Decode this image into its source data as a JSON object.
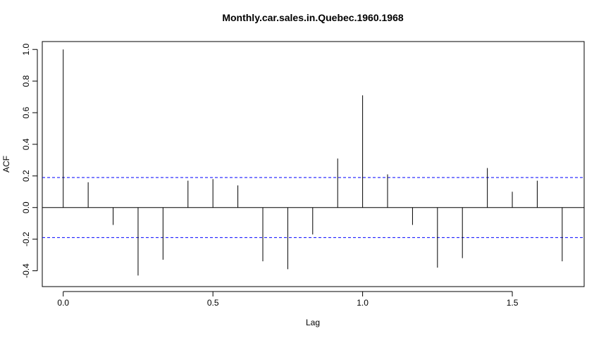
{
  "chart_data": {
    "type": "bar",
    "title": "Monthly.car.sales.in.Quebec.1960.1968",
    "xlabel": "Lag",
    "ylabel": "ACF",
    "xlim": [
      -0.07,
      1.74
    ],
    "ylim": [
      -0.5,
      1.05
    ],
    "x_ticks": [
      0.0,
      0.5,
      1.0,
      1.5
    ],
    "x_tick_labels": [
      "0.0",
      "0.5",
      "1.0",
      "1.5"
    ],
    "y_ticks": [
      -0.4,
      -0.2,
      0.0,
      0.2,
      0.4,
      0.6,
      0.8,
      1.0
    ],
    "y_tick_labels": [
      "-0.4",
      "-0.2",
      "0.0",
      "0.2",
      "0.4",
      "0.6",
      "0.8",
      "1.0"
    ],
    "confidence_bound": 0.19,
    "series": [
      {
        "x": [
          0.0,
          0.0833,
          0.1667,
          0.25,
          0.3333,
          0.4167,
          0.5,
          0.5833,
          0.6667,
          0.75,
          0.8333,
          0.9167,
          1.0,
          1.0833,
          1.1667,
          1.25,
          1.3333,
          1.4167,
          1.5,
          1.5833,
          1.6667
        ],
        "values": [
          1.0,
          0.16,
          -0.11,
          -0.43,
          -0.33,
          0.17,
          0.18,
          0.14,
          -0.34,
          -0.39,
          -0.17,
          0.31,
          0.71,
          0.21,
          -0.11,
          -0.38,
          -0.32,
          0.25,
          0.1,
          0.17,
          -0.34
        ]
      }
    ],
    "colors": {
      "bars": "#000000",
      "bounds": "#0000ff",
      "zero_line": "#000000"
    },
    "grid": false,
    "legend": "none"
  }
}
